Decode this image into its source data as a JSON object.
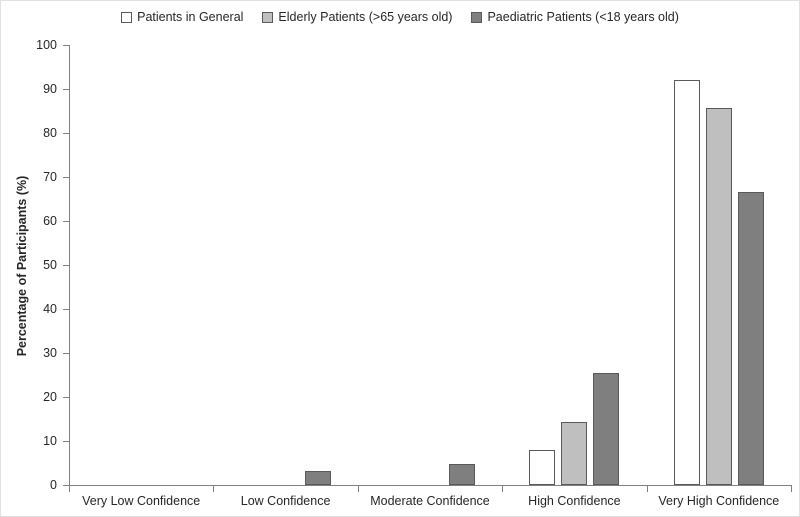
{
  "figure": {
    "background": "#ffffff",
    "border_color": "#e0e0e0"
  },
  "chart_data": {
    "type": "bar",
    "title": "",
    "xlabel": "",
    "ylabel": "Percentage of Participants (%)",
    "ylim": [
      0,
      100
    ],
    "yticks": [
      0,
      10,
      20,
      30,
      40,
      50,
      60,
      70,
      80,
      90,
      100
    ],
    "grid": false,
    "legend_position": "top",
    "categories": [
      "Very Low Confidence",
      "Low Confidence",
      "Moderate Confidence",
      "High Confidence",
      "Very High Confidence"
    ],
    "series": [
      {
        "name": "Patients in General",
        "fill": "#ffffff",
        "values": [
          0,
          0,
          0,
          7.9,
          92.1
        ]
      },
      {
        "name": "Elderly Patients (>65 years old)",
        "fill": "#bfbfbf",
        "values": [
          0,
          0,
          0,
          14.3,
          85.7
        ]
      },
      {
        "name": "Paediatric Patients (<18 years old)",
        "fill": "#7f7f7f",
        "values": [
          0,
          3.2,
          4.8,
          25.4,
          66.7
        ]
      }
    ],
    "bar_border_color": "#595959",
    "axis_color": "#808080",
    "text_color": "#262626"
  }
}
